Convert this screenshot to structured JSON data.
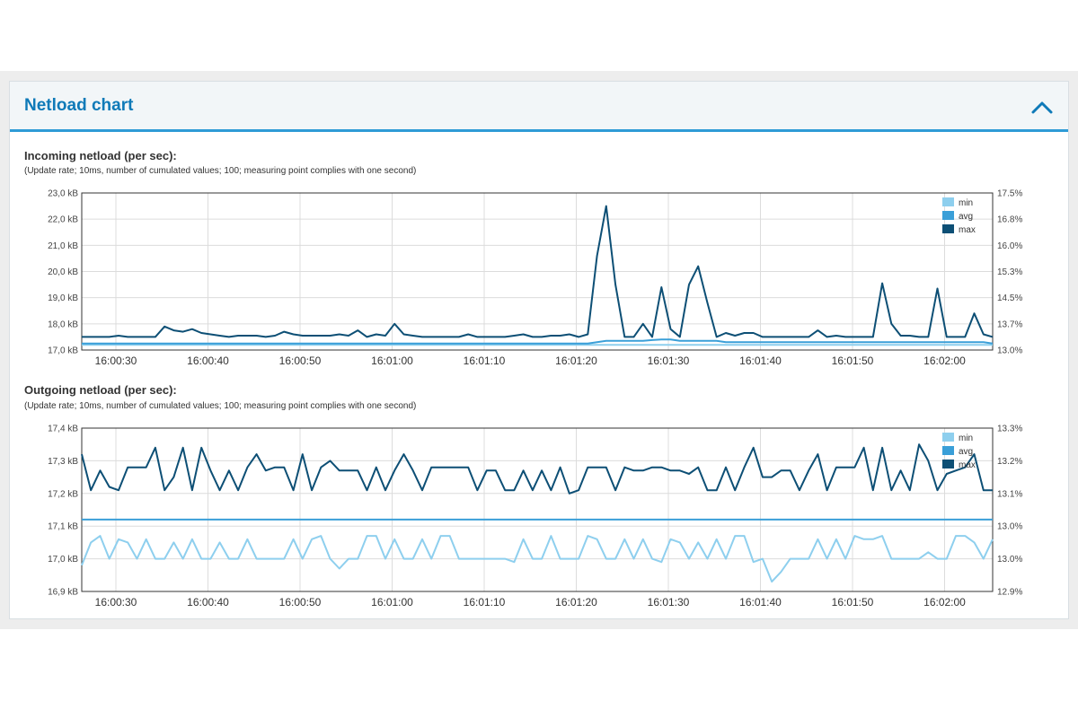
{
  "panel": {
    "title": "Netload chart",
    "collapse_icon": "chevron-up-icon"
  },
  "colors": {
    "min": "#8ecfee",
    "avg": "#3a9fd8",
    "max": "#0d4f75",
    "accent": "#2e9bd6",
    "title": "#0f7ab8"
  },
  "incoming": {
    "title": "Incoming netload (per sec):",
    "subtitle": "(Update rate; 10ms, number of cumulated values; 100; measuring point complies with one second)",
    "chart_data": {
      "type": "line",
      "x_ticks": [
        "16:00:30",
        "16:00:40",
        "16:00:50",
        "16:01:00",
        "16:01:10",
        "16:01:20",
        "16:01:30",
        "16:01:40",
        "16:01:50",
        "16:02:00"
      ],
      "y_ticks": [
        "17,0 kB",
        "18,0 kB",
        "19,0 kB",
        "20,0 kB",
        "21,0 kB",
        "22,0 kB",
        "23,0 kB"
      ],
      "y2_ticks": [
        "13.0%",
        "13.7%",
        "14.5%",
        "15.3%",
        "16.0%",
        "16.8%",
        "17.5%"
      ],
      "ylim": [
        17,
        23
      ],
      "legend": [
        "min",
        "avg",
        "max"
      ],
      "legend_position": "top-right",
      "grid": true,
      "series": [
        {
          "name": "max",
          "values": [
            17.5,
            17.5,
            17.5,
            17.5,
            17.55,
            17.5,
            17.5,
            17.5,
            17.5,
            17.9,
            17.75,
            17.7,
            17.8,
            17.65,
            17.6,
            17.55,
            17.5,
            17.55,
            17.55,
            17.55,
            17.5,
            17.55,
            17.7,
            17.6,
            17.55,
            17.55,
            17.55,
            17.55,
            17.6,
            17.55,
            17.75,
            17.5,
            17.6,
            17.55,
            18.0,
            17.6,
            17.55,
            17.5,
            17.5,
            17.5,
            17.5,
            17.5,
            17.6,
            17.5,
            17.5,
            17.5,
            17.5,
            17.55,
            17.6,
            17.5,
            17.5,
            17.55,
            17.55,
            17.6,
            17.5,
            17.6,
            20.6,
            22.5,
            19.5,
            17.5,
            17.5,
            18.0,
            17.5,
            19.4,
            17.8,
            17.5,
            19.5,
            20.2,
            18.8,
            17.5,
            17.65,
            17.55,
            17.65,
            17.65,
            17.5,
            17.5,
            17.5,
            17.5,
            17.5,
            17.5,
            17.75,
            17.5,
            17.55,
            17.5,
            17.5,
            17.5,
            17.5,
            19.55,
            18.0,
            17.55,
            17.55,
            17.5,
            17.5,
            19.35,
            17.5,
            17.5,
            17.5,
            18.4,
            17.6,
            17.5
          ]
        },
        {
          "name": "avg",
          "values": [
            17.25,
            17.25,
            17.25,
            17.25,
            17.25,
            17.25,
            17.25,
            17.25,
            17.25,
            17.25,
            17.25,
            17.25,
            17.25,
            17.25,
            17.25,
            17.25,
            17.25,
            17.25,
            17.25,
            17.25,
            17.25,
            17.25,
            17.25,
            17.25,
            17.25,
            17.25,
            17.25,
            17.25,
            17.25,
            17.25,
            17.25,
            17.25,
            17.25,
            17.25,
            17.25,
            17.25,
            17.25,
            17.25,
            17.25,
            17.25,
            17.25,
            17.25,
            17.25,
            17.25,
            17.25,
            17.25,
            17.25,
            17.25,
            17.25,
            17.25,
            17.25,
            17.25,
            17.25,
            17.25,
            17.25,
            17.25,
            17.3,
            17.35,
            17.35,
            17.35,
            17.35,
            17.35,
            17.38,
            17.4,
            17.4,
            17.35,
            17.35,
            17.35,
            17.35,
            17.35,
            17.3,
            17.3,
            17.3,
            17.3,
            17.3,
            17.3,
            17.3,
            17.3,
            17.3,
            17.3,
            17.3,
            17.3,
            17.3,
            17.3,
            17.3,
            17.3,
            17.3,
            17.3,
            17.3,
            17.3,
            17.3,
            17.3,
            17.3,
            17.3,
            17.3,
            17.3,
            17.3,
            17.3,
            17.3,
            17.25
          ]
        },
        {
          "name": "min",
          "values": [
            17.2,
            17.2,
            17.2,
            17.2,
            17.2,
            17.2,
            17.2,
            17.2,
            17.2,
            17.2,
            17.2,
            17.2,
            17.2,
            17.2,
            17.2,
            17.2,
            17.2,
            17.2,
            17.2,
            17.2,
            17.2,
            17.2,
            17.2,
            17.2,
            17.2,
            17.2,
            17.2,
            17.2,
            17.2,
            17.2,
            17.2,
            17.2,
            17.2,
            17.2,
            17.2,
            17.2,
            17.2,
            17.2,
            17.2,
            17.2,
            17.2,
            17.2,
            17.2,
            17.2,
            17.2,
            17.2,
            17.2,
            17.2,
            17.2,
            17.2,
            17.2,
            17.2,
            17.2,
            17.2,
            17.2,
            17.2,
            17.2,
            17.2,
            17.2,
            17.2,
            17.2,
            17.2,
            17.2,
            17.2,
            17.2,
            17.2,
            17.2,
            17.2,
            17.2,
            17.2,
            17.2,
            17.2,
            17.2,
            17.2,
            17.2,
            17.2,
            17.2,
            17.2,
            17.2,
            17.2,
            17.2,
            17.2,
            17.2,
            17.2,
            17.2,
            17.2,
            17.2,
            17.2,
            17.2,
            17.2,
            17.2,
            17.2,
            17.2,
            17.2,
            17.2,
            17.2,
            17.2,
            17.2,
            17.2,
            17.2
          ]
        }
      ]
    }
  },
  "outgoing": {
    "title": "Outgoing netload (per sec):",
    "subtitle": "(Update rate; 10ms, number of cumulated values; 100; measuring point complies with one second)",
    "chart_data": {
      "type": "line",
      "x_ticks": [
        "16:00:30",
        "16:00:40",
        "16:00:50",
        "16:01:00",
        "16:01:10",
        "16:01:20",
        "16:01:30",
        "16:01:40",
        "16:01:50",
        "16:02:00"
      ],
      "y_ticks": [
        "16,9 kB",
        "17,0 kB",
        "17,1 kB",
        "17,2 kB",
        "17,3 kB",
        "17,4 kB"
      ],
      "y2_ticks": [
        "12.9%",
        "13.0%",
        "13.0%",
        "13.1%",
        "13.2%",
        "13.3%"
      ],
      "ylim": [
        16.9,
        17.4
      ],
      "legend": [
        "min",
        "avg",
        "max"
      ],
      "legend_position": "top-right",
      "grid": true,
      "series": [
        {
          "name": "max",
          "values": [
            17.32,
            17.21,
            17.27,
            17.22,
            17.21,
            17.28,
            17.28,
            17.28,
            17.34,
            17.21,
            17.25,
            17.34,
            17.21,
            17.34,
            17.27,
            17.21,
            17.27,
            17.21,
            17.28,
            17.32,
            17.27,
            17.28,
            17.28,
            17.21,
            17.32,
            17.21,
            17.28,
            17.3,
            17.27,
            17.27,
            17.27,
            17.21,
            17.28,
            17.21,
            17.27,
            17.32,
            17.27,
            17.21,
            17.28,
            17.28,
            17.28,
            17.28,
            17.28,
            17.21,
            17.27,
            17.27,
            17.21,
            17.21,
            17.27,
            17.21,
            17.27,
            17.21,
            17.28,
            17.2,
            17.21,
            17.28,
            17.28,
            17.28,
            17.21,
            17.28,
            17.27,
            17.27,
            17.28,
            17.28,
            17.27,
            17.27,
            17.26,
            17.28,
            17.21,
            17.21,
            17.28,
            17.21,
            17.28,
            17.34,
            17.25,
            17.25,
            17.27,
            17.27,
            17.21,
            17.27,
            17.32,
            17.21,
            17.28,
            17.28,
            17.28,
            17.34,
            17.21,
            17.34,
            17.21,
            17.27,
            17.21,
            17.35,
            17.3,
            17.21,
            17.26,
            17.27,
            17.28,
            17.32,
            17.21,
            17.21
          ]
        },
        {
          "name": "avg",
          "values": [
            17.12,
            17.12,
            17.12,
            17.12,
            17.12,
            17.12,
            17.12,
            17.12,
            17.12,
            17.12,
            17.12,
            17.12,
            17.12,
            17.12,
            17.12,
            17.12,
            17.12,
            17.12,
            17.12,
            17.12,
            17.12,
            17.12,
            17.12,
            17.12,
            17.12,
            17.12,
            17.12,
            17.12,
            17.12,
            17.12,
            17.12,
            17.12,
            17.12,
            17.12,
            17.12,
            17.12,
            17.12,
            17.12,
            17.12,
            17.12,
            17.12,
            17.12,
            17.12,
            17.12,
            17.12,
            17.12,
            17.12,
            17.12,
            17.12,
            17.12,
            17.12,
            17.12,
            17.12,
            17.12,
            17.12,
            17.12,
            17.12,
            17.12,
            17.12,
            17.12,
            17.12,
            17.12,
            17.12,
            17.12,
            17.12,
            17.12,
            17.12,
            17.12,
            17.12,
            17.12,
            17.12,
            17.12,
            17.12,
            17.12,
            17.12,
            17.12,
            17.12,
            17.12,
            17.12,
            17.12,
            17.12,
            17.12,
            17.12,
            17.12,
            17.12,
            17.12,
            17.12,
            17.12,
            17.12,
            17.12,
            17.12,
            17.12,
            17.12,
            17.12,
            17.12,
            17.12,
            17.12,
            17.12,
            17.12,
            17.12
          ]
        },
        {
          "name": "min",
          "values": [
            16.98,
            17.05,
            17.07,
            17.0,
            17.06,
            17.05,
            17.0,
            17.06,
            17.0,
            17.0,
            17.05,
            17.0,
            17.06,
            17.0,
            17.0,
            17.05,
            17.0,
            17.0,
            17.06,
            17.0,
            17.0,
            17.0,
            17.0,
            17.06,
            17.0,
            17.06,
            17.07,
            17.0,
            16.97,
            17.0,
            17.0,
            17.07,
            17.07,
            17.0,
            17.06,
            17.0,
            17.0,
            17.06,
            17.0,
            17.07,
            17.07,
            17.0,
            17.0,
            17.0,
            17.0,
            17.0,
            17.0,
            16.99,
            17.06,
            17.0,
            17.0,
            17.07,
            17.0,
            17.0,
            17.0,
            17.07,
            17.06,
            17.0,
            17.0,
            17.06,
            17.0,
            17.06,
            17.0,
            16.99,
            17.06,
            17.05,
            17.0,
            17.05,
            17.0,
            17.06,
            17.0,
            17.07,
            17.07,
            16.99,
            17.0,
            16.93,
            16.96,
            17.0,
            17.0,
            17.0,
            17.06,
            17.0,
            17.06,
            17.0,
            17.07,
            17.06,
            17.06,
            17.07,
            17.0,
            17.0,
            17.0,
            17.0,
            17.02,
            17.0,
            17.0,
            17.07,
            17.07,
            17.05,
            17.0,
            17.06
          ]
        }
      ]
    }
  }
}
